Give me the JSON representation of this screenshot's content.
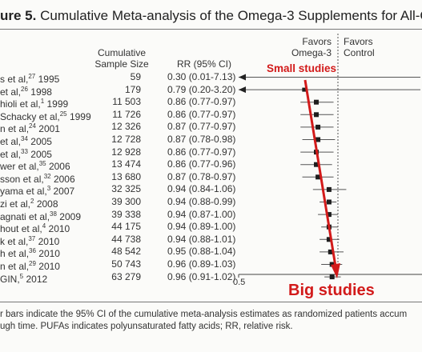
{
  "figure": {
    "title_bold": "ure 5.",
    "title_rest": " Cumulative Meta-analysis of the Omega-3 Supplements for All-Cause Mortality",
    "col_n": [
      "Cumulative",
      "Sample Size"
    ],
    "col_rr": "RR (95% CI)",
    "favors_left": [
      "Favors",
      "Omega-3"
    ],
    "favors_right": [
      "Favors",
      "Control"
    ],
    "footnote": [
      "r bars indicate the 95% CI of the cumulative meta-analysis estimates as randomized patients accum",
      "ugh time. PUFAs indicates polyunsaturated fatty acids; RR, relative risk."
    ],
    "annotation_small": "Small studies",
    "annotation_big": "Big studies",
    "colors": {
      "annotation": "#d21a1a",
      "marker": "#1e1e1e",
      "ci": "#555555"
    }
  },
  "chart_data": {
    "type": "forest",
    "x_scale": "log",
    "xlim": [
      0.5,
      2.0
    ],
    "x_ticks": [
      "0.5"
    ],
    "reference_line": 1.0,
    "rows": [
      {
        "study": "s et al,",
        "ref": "27",
        "year": "1995",
        "n": "59",
        "rr_text": "0.30 (0.01-7.13)",
        "rr": 0.3,
        "lo": 0.01,
        "hi": 7.13,
        "arrow_left": true
      },
      {
        "study": "et al,",
        "ref": "26",
        "year": "1998",
        "n": "179",
        "rr_text": "0.79 (0.20-3.20)",
        "rr": 0.79,
        "lo": 0.2,
        "hi": 3.2,
        "arrow_left": true
      },
      {
        "study": "hioli et al,",
        "ref": "1",
        "year": "1999",
        "n": "11 503",
        "rr_text": "0.86 (0.77-0.97)",
        "rr": 0.86,
        "lo": 0.77,
        "hi": 0.97
      },
      {
        "study": "Schacky et al,",
        "ref": "25",
        "year": "1999",
        "n": "11 726",
        "rr_text": "0.86 (0.77-0.97)",
        "rr": 0.86,
        "lo": 0.77,
        "hi": 0.97
      },
      {
        "study": "n et al,",
        "ref": "24",
        "year": "2001",
        "n": "12 326",
        "rr_text": "0.87 (0.77-0.97)",
        "rr": 0.87,
        "lo": 0.77,
        "hi": 0.97
      },
      {
        "study": "et al,",
        "ref": "34",
        "year": "2005",
        "n": "12 728",
        "rr_text": "0.87 (0.78-0.98)",
        "rr": 0.87,
        "lo": 0.78,
        "hi": 0.98
      },
      {
        "study": "et al,",
        "ref": "33",
        "year": "2005",
        "n": "12 928",
        "rr_text": "0.86 (0.77-0.97)",
        "rr": 0.86,
        "lo": 0.77,
        "hi": 0.97
      },
      {
        "study": "wer et al,",
        "ref": "35",
        "year": "2006",
        "n": "13 474",
        "rr_text": "0.86 (0.77-0.96)",
        "rr": 0.86,
        "lo": 0.77,
        "hi": 0.96
      },
      {
        "study": "sson et al,",
        "ref": "32",
        "year": "2006",
        "n": "13 680",
        "rr_text": "0.87 (0.78-0.97)",
        "rr": 0.87,
        "lo": 0.78,
        "hi": 0.97
      },
      {
        "study": "yama et al,",
        "ref": "3",
        "year": "2007",
        "n": "32 325",
        "rr_text": "0.94 (0.84-1.06)",
        "rr": 0.94,
        "lo": 0.84,
        "hi": 1.06
      },
      {
        "study": "zi et al,",
        "ref": "2",
        "year": "2008",
        "n": "39 300",
        "rr_text": "0.94 (0.88-0.99)",
        "rr": 0.94,
        "lo": 0.88,
        "hi": 0.99
      },
      {
        "study": "agnati et al,",
        "ref": "38",
        "year": "2009",
        "n": "39 338",
        "rr_text": "0.94 (0.87-1.00)",
        "rr": 0.94,
        "lo": 0.87,
        "hi": 1.0
      },
      {
        "study": "hout et al,",
        "ref": "4",
        "year": "2010",
        "n": "44 175",
        "rr_text": "0.94 (0.89-1.00)",
        "rr": 0.94,
        "lo": 0.89,
        "hi": 1.0
      },
      {
        "study": "k et al,",
        "ref": "37",
        "year": "2010",
        "n": "44 738",
        "rr_text": "0.94 (0.88-1.01)",
        "rr": 0.94,
        "lo": 0.88,
        "hi": 1.01
      },
      {
        "study": "h et al,",
        "ref": "36",
        "year": "2010",
        "n": "48 542",
        "rr_text": "0.95 (0.88-1.04)",
        "rr": 0.95,
        "lo": 0.88,
        "hi": 1.04
      },
      {
        "study": "n et al,",
        "ref": "29",
        "year": "2010",
        "n": "50 743",
        "rr_text": "0.96 (0.89-1.03)",
        "rr": 0.96,
        "lo": 0.89,
        "hi": 1.03
      },
      {
        "study": "GIN,",
        "ref": "5",
        "year": "2012",
        "n": "63 279",
        "rr_text": "0.96 (0.91-1.02)",
        "rr": 0.96,
        "lo": 0.91,
        "hi": 1.02
      }
    ]
  }
}
